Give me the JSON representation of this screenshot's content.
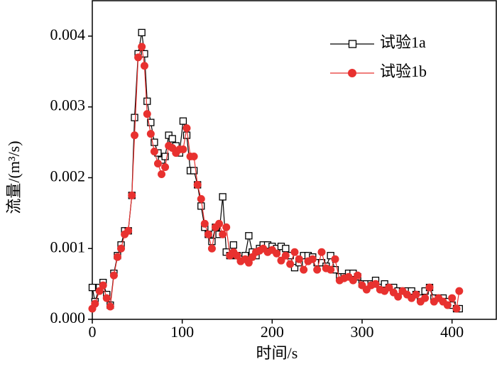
{
  "chart_data": {
    "type": "line",
    "xlabel": "时间/s",
    "ylabel": "流量/(m³/s)",
    "x": [
      0,
      3,
      8,
      12,
      16,
      20,
      24,
      28,
      32,
      36,
      40,
      44,
      47,
      51,
      55,
      58,
      61,
      65,
      69,
      73,
      77,
      81,
      85,
      89,
      93,
      97,
      101,
      105,
      109,
      113,
      117,
      121,
      125,
      129,
      133,
      137,
      141,
      145,
      149,
      153,
      157,
      161,
      165,
      170,
      174,
      178,
      182,
      186,
      190,
      195,
      200,
      205,
      210,
      215,
      220,
      225,
      230,
      235,
      240,
      245,
      250,
      255,
      260,
      265,
      270,
      275,
      280,
      285,
      290,
      295,
      300,
      305,
      310,
      315,
      320,
      325,
      330,
      335,
      340,
      345,
      350,
      355,
      360,
      365,
      370,
      375,
      380,
      385,
      390,
      395,
      400,
      405,
      408
    ],
    "series": [
      {
        "name": "试验1a",
        "color": "#000000",
        "marker": "square",
        "values": [
          0.00045,
          0.00025,
          0.00045,
          0.00052,
          0.00035,
          0.0002,
          0.00065,
          0.0009,
          0.00105,
          0.00125,
          0.00125,
          0.00175,
          0.00285,
          0.00375,
          0.00405,
          0.00375,
          0.00308,
          0.00278,
          0.0025,
          0.00235,
          0.00225,
          0.0023,
          0.0026,
          0.00255,
          0.00245,
          0.00235,
          0.0028,
          0.0026,
          0.0021,
          0.0021,
          0.0019,
          0.0016,
          0.0013,
          0.0012,
          0.0011,
          0.0013,
          0.0012,
          0.00173,
          0.00095,
          0.0009,
          0.00105,
          0.0009,
          0.00085,
          0.0009,
          0.00118,
          0.00095,
          0.0009,
          0.001,
          0.00105,
          0.00105,
          0.00103,
          0.001,
          0.00103,
          0.001,
          0.0009,
          0.00073,
          0.0008,
          0.0009,
          0.0009,
          0.00088,
          0.0008,
          0.0008,
          0.00075,
          0.0009,
          0.0007,
          0.0006,
          0.0006,
          0.00065,
          0.00065,
          0.0006,
          0.0005,
          0.0005,
          0.0005,
          0.00055,
          0.00045,
          0.0005,
          0.00045,
          0.00045,
          0.0004,
          0.0004,
          0.0004,
          0.0004,
          0.00035,
          0.0003,
          0.0004,
          0.00045,
          0.0003,
          0.0003,
          0.0003,
          0.00025,
          0.0002,
          0.00015,
          0.00015
        ]
      },
      {
        "name": "试验1b",
        "color": "#e8312f",
        "marker": "circle",
        "values": [
          0.00015,
          0.00022,
          0.0004,
          0.00048,
          0.0003,
          0.00018,
          0.00062,
          0.00088,
          0.001,
          0.0012,
          0.00125,
          0.00175,
          0.0026,
          0.0037,
          0.00385,
          0.00358,
          0.0029,
          0.00262,
          0.00237,
          0.0022,
          0.00205,
          0.00215,
          0.00245,
          0.00242,
          0.00235,
          0.0024,
          0.0024,
          0.0027,
          0.0023,
          0.0023,
          0.0019,
          0.0017,
          0.00135,
          0.0012,
          0.001,
          0.0013,
          0.00135,
          0.0012,
          0.0013,
          0.0009,
          0.00095,
          0.0009,
          0.00082,
          0.00085,
          0.0008,
          0.00088,
          0.00095,
          0.00097,
          0.001,
          0.00095,
          0.00098,
          0.00093,
          0.00083,
          0.0009,
          0.00078,
          0.00095,
          0.00085,
          0.0007,
          0.00082,
          0.00085,
          0.0007,
          0.00095,
          0.00072,
          0.0007,
          0.00085,
          0.00055,
          0.00058,
          0.0006,
          0.00055,
          0.00062,
          0.00048,
          0.00042,
          0.00048,
          0.0005,
          0.00042,
          0.0004,
          0.00045,
          0.00038,
          0.00032,
          0.0004,
          0.00035,
          0.0003,
          0.00035,
          0.00025,
          0.0003,
          0.00045,
          0.00025,
          0.0003,
          0.00025,
          0.0002,
          0.0003,
          0.00015,
          0.0004
        ]
      }
    ],
    "xlim": [
      0,
      450
    ],
    "xticks": [
      0,
      100,
      200,
      300,
      400
    ],
    "ylim": [
      0,
      0.0045
    ],
    "yticks": [
      {
        "value": 0,
        "label": "0.000"
      },
      0.001,
      0.002,
      0.003,
      0.004
    ],
    "legend": "upper right"
  }
}
